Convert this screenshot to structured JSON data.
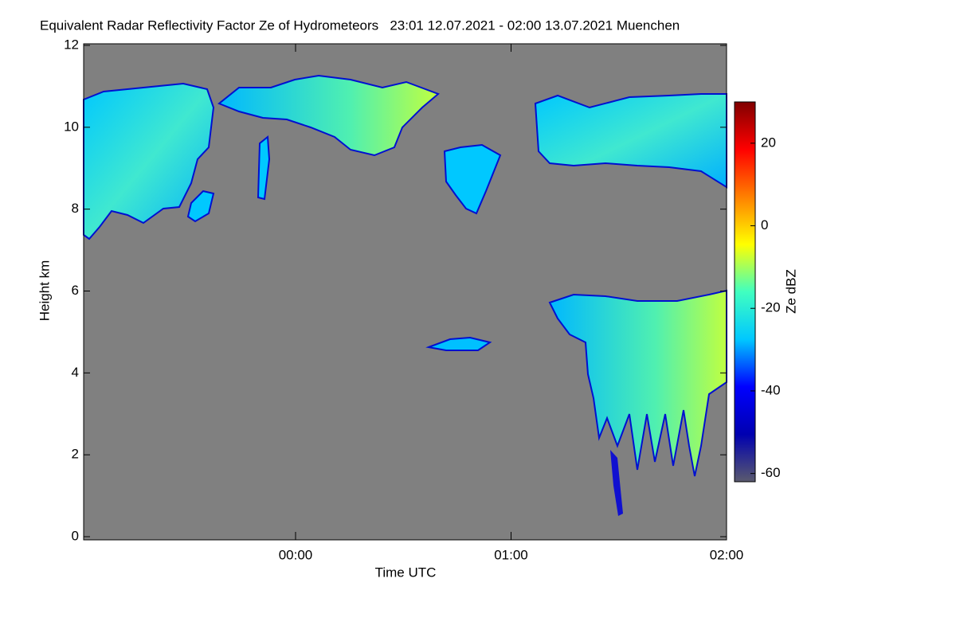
{
  "chart_data": {
    "type": "heatmap",
    "title": "Equivalent Radar Reflectivity Factor Ze of Hydrometeors   23:01 12.07.2021 - 02:00 13.07.2021 Muenchen",
    "x_label": "Time UTC",
    "y_label": "Height km",
    "xlim": [
      -59,
      120
    ],
    "xticks": [
      {
        "value": 0,
        "label": "00:00"
      },
      {
        "value": 60,
        "label": "01:00"
      },
      {
        "value": 120,
        "label": "02:00"
      }
    ],
    "ylim": [
      0,
      12
    ],
    "yticks": [
      0,
      2,
      4,
      6,
      8,
      10,
      12
    ],
    "background": "#808080",
    "colorbar": {
      "label": "Ze dBZ",
      "lim": [
        -62,
        30
      ],
      "ticks": [
        -60,
        -40,
        -20,
        0,
        20
      ],
      "colormap": [
        "#5a5a6e",
        "#0000b0",
        "#0000ff",
        "#00c8ff",
        "#40ffc0",
        "#ffff00",
        "#ff8000",
        "#ff0000",
        "#800000"
      ]
    }
  }
}
